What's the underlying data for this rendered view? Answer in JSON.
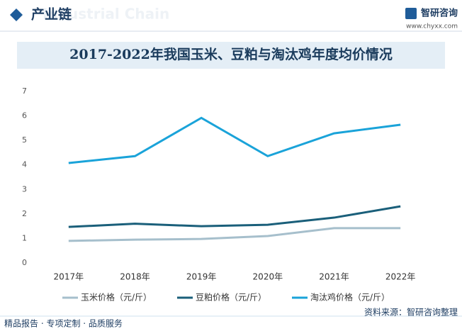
{
  "header": {
    "section": "产业链",
    "section_en": "Industrial Chain",
    "brand": "智研咨询",
    "url": "www.chyxx.com"
  },
  "chart_data": {
    "type": "line",
    "title": "2017-2022年我国玉米、豆粕与淘汰鸡年度均价情况",
    "categories": [
      "2017年",
      "2018年",
      "2019年",
      "2020年",
      "2021年",
      "2022年"
    ],
    "series": [
      {
        "name": "玉米价格（元/斤）",
        "color": "#a6bfcc",
        "values": [
          0.9,
          0.95,
          0.98,
          1.1,
          1.42,
          1.42
        ]
      },
      {
        "name": "豆粕价格（元/斤）",
        "color": "#1a5f7a",
        "values": [
          1.47,
          1.6,
          1.5,
          1.56,
          1.85,
          2.31
        ]
      },
      {
        "name": "淘汰鸡价格（元/斤）",
        "color": "#1aa3d9",
        "values": [
          4.08,
          4.36,
          5.92,
          4.36,
          5.29,
          5.64
        ]
      }
    ],
    "ylim": [
      0,
      7
    ],
    "yticks": [
      0,
      1,
      2,
      3,
      4,
      5,
      6,
      7
    ],
    "grid": false
  },
  "footer": {
    "slogan": "精品报告 · 专项定制 · 品质服务",
    "source": "资料来源：智研咨询整理"
  }
}
